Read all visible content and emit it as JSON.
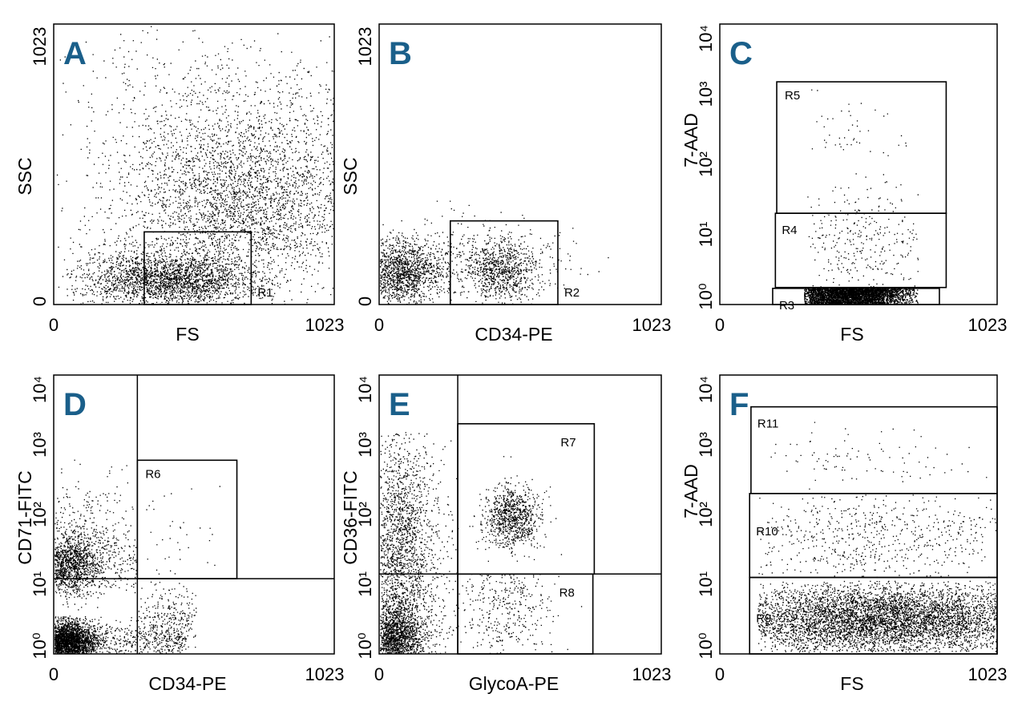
{
  "chart_data": [
    {
      "type": "scatter",
      "panel": "A",
      "xlabel": "FS",
      "ylabel": "SSC",
      "xscale": "linear",
      "yscale": "linear",
      "xlim": [
        0,
        1023
      ],
      "ylim": [
        0,
        1023
      ],
      "xticks": [
        "0",
        "1023"
      ],
      "yticks": [
        "0",
        "1023"
      ],
      "gates": [
        {
          "name": "R1",
          "x": [
            330,
            720
          ],
          "y": [
            0,
            265
          ]
        }
      ],
      "clusters": [
        {
          "cx": 480,
          "cy": 90,
          "sx": 130,
          "sy": 45,
          "n": 1500
        },
        {
          "cx": 700,
          "cy": 380,
          "sx": 220,
          "sy": 170,
          "n": 3000
        },
        {
          "cx": 600,
          "cy": 600,
          "sx": 300,
          "sy": 230,
          "n": 900
        },
        {
          "cx": 300,
          "cy": 100,
          "sx": 130,
          "sy": 60,
          "n": 900
        }
      ]
    },
    {
      "type": "scatter",
      "panel": "B",
      "xlabel": "CD34-PE",
      "ylabel": "SSC",
      "xscale": "linear",
      "yscale": "linear",
      "xlim": [
        0,
        1023
      ],
      "ylim": [
        0,
        1023
      ],
      "xticks": [
        "0",
        "1023"
      ],
      "yticks": [
        "0",
        "1023"
      ],
      "gates": [
        {
          "name": "R2",
          "x": [
            258,
            648
          ],
          "y": [
            0,
            305
          ]
        }
      ],
      "clusters": [
        {
          "cx": 80,
          "cy": 115,
          "sx": 70,
          "sy": 60,
          "n": 1400
        },
        {
          "cx": 440,
          "cy": 120,
          "sx": 65,
          "sy": 55,
          "n": 700
        },
        {
          "cx": 350,
          "cy": 160,
          "sx": 170,
          "sy": 70,
          "n": 500
        }
      ]
    },
    {
      "type": "scatter",
      "panel": "C",
      "xlabel": "FS",
      "ylabel": "7-AAD",
      "xscale": "linear",
      "yscale": "log",
      "xlim": [
        0,
        1023
      ],
      "ylim": [
        1,
        10000
      ],
      "xticks": [
        "0",
        "1023"
      ],
      "yticks": [
        "10⁰",
        "10¹",
        "10²",
        "10³",
        "10⁴"
      ],
      "gates": [
        {
          "name": "R5",
          "x": [
            210,
            835
          ],
          "y": [
            20,
            1500
          ]
        },
        {
          "name": "R4",
          "x": [
            205,
            835
          ],
          "y": [
            1.75,
            20
          ]
        },
        {
          "name": "R3",
          "x": [
            195,
            810
          ],
          "y": [
            1,
            1.7
          ]
        }
      ],
      "clusters": [
        {
          "cx": 480,
          "cy": 0.3,
          "sx": 110,
          "sy": 0.12,
          "n": 3800,
          "xr": [
            310,
            730
          ],
          "yr": [
            0.005,
            0.23
          ]
        },
        {
          "cx": 520,
          "cy": 0.85,
          "sx": 120,
          "sy": 0.4,
          "n": 300,
          "xr": [
            310,
            730
          ],
          "yr": [
            0.25,
            1.9
          ]
        },
        {
          "cx": 470,
          "cy": 2.35,
          "sx": 110,
          "sy": 0.25,
          "n": 45,
          "xr": [
            310,
            730
          ],
          "yr": [
            2.1,
            3.1
          ]
        }
      ]
    },
    {
      "type": "scatter",
      "panel": "D",
      "xlabel": "CD34-PE",
      "ylabel": "CD71-FITC",
      "xscale": "linear",
      "yscale": "log",
      "xlim": [
        0,
        1023
      ],
      "ylim": [
        1,
        10000
      ],
      "xticks": [
        "0",
        "1023"
      ],
      "yticks": [
        "10⁰",
        "10¹",
        "10²",
        "10³",
        "10⁴"
      ],
      "gates": [
        {
          "name": "R6",
          "x": [
            305,
            668
          ],
          "y": [
            12,
            600
          ]
        }
      ],
      "quadrant": {
        "x": 305,
        "y": 12
      },
      "clusters": [
        {
          "cx": 45,
          "cy": 0.17,
          "sx": 55,
          "sy": 0.14,
          "n": 2600,
          "xr": [
            0,
            480
          ],
          "yr": [
            0.0,
            0.55
          ]
        },
        {
          "cx": 55,
          "cy": 1.3,
          "sx": 55,
          "sy": 0.22,
          "n": 1200,
          "xr": [
            0,
            300
          ],
          "yr": [
            0.8,
            1.9
          ]
        },
        {
          "cx": 110,
          "cy": 1.6,
          "sx": 90,
          "sy": 0.5,
          "n": 350,
          "xr": [
            0,
            300
          ],
          "yr": [
            0.6,
            2.8
          ]
        },
        {
          "cx": 420,
          "cy": 1.7,
          "sx": 70,
          "sy": 0.4,
          "n": 35,
          "xr": [
            305,
            660
          ],
          "yr": [
            1.1,
            2.5
          ]
        },
        {
          "cx": 430,
          "cy": 0.5,
          "sx": 70,
          "sy": 0.25,
          "n": 280,
          "xr": [
            305,
            520
          ],
          "yr": [
            0.0,
            1.05
          ]
        }
      ]
    },
    {
      "type": "scatter",
      "panel": "E",
      "xlabel": "GlycoA-PE",
      "ylabel": "CD36-FITC",
      "xscale": "linear",
      "yscale": "log",
      "xlim": [
        0,
        1023
      ],
      "ylim": [
        1,
        10000
      ],
      "xticks": [
        "0",
        "1023"
      ],
      "yticks": [
        "10⁰",
        "10¹",
        "10²",
        "10³",
        "10⁴"
      ],
      "gates": [
        {
          "name": "R7",
          "x": [
            285,
            780
          ],
          "y": [
            14,
            2000
          ]
        },
        {
          "name": "R8",
          "x": [
            285,
            775
          ],
          "y": [
            1,
            14
          ]
        }
      ],
      "quadrant": {
        "x": 285,
        "y": 14
      },
      "clusters": [
        {
          "cx": 60,
          "cy": 0.25,
          "sx": 45,
          "sy": 0.2,
          "n": 1200,
          "xr": [
            0,
            260
          ],
          "yr": [
            0.0,
            0.9
          ]
        },
        {
          "cx": 80,
          "cy": 1.4,
          "sx": 60,
          "sy": 0.9,
          "n": 1900,
          "xr": [
            0,
            285
          ],
          "yr": [
            0.0,
            3.2
          ]
        },
        {
          "cx": 480,
          "cy": 1.95,
          "sx": 50,
          "sy": 0.22,
          "n": 900,
          "xr": [
            285,
            780
          ],
          "yr": [
            1.15,
            3.3
          ]
        },
        {
          "cx": 460,
          "cy": 0.8,
          "sx": 90,
          "sy": 0.5,
          "n": 350,
          "xr": [
            285,
            775
          ],
          "yr": [
            0.0,
            1.15
          ]
        }
      ]
    },
    {
      "type": "scatter",
      "panel": "F",
      "xlabel": "FS",
      "ylabel": "7-AAD",
      "xscale": "linear",
      "yscale": "log",
      "xlim": [
        0,
        1023
      ],
      "ylim": [
        1,
        10000
      ],
      "xticks": [
        "0",
        "1023"
      ],
      "yticks": [
        "10⁰",
        "10¹",
        "10²",
        "10³",
        "10⁴"
      ],
      "gates": [
        {
          "name": "R11",
          "x": [
            115,
            1023
          ],
          "y": [
            200,
            3500
          ]
        },
        {
          "name": "R10",
          "x": [
            110,
            1023
          ],
          "y": [
            12.5,
            200
          ]
        },
        {
          "name": "R9",
          "x": [
            110,
            1023
          ],
          "y": [
            1,
            12.5
          ]
        }
      ],
      "clusters": [
        {
          "cx": 600,
          "cy": 0.5,
          "sx": 280,
          "sy": 0.25,
          "n": 5200,
          "xr": [
            140,
            1023
          ],
          "yr": [
            0.03,
            1.05
          ]
        },
        {
          "cx": 580,
          "cy": 1.7,
          "sx": 280,
          "sy": 0.35,
          "n": 600,
          "xr": [
            140,
            1023
          ],
          "yr": [
            1.1,
            2.3
          ]
        },
        {
          "cx": 580,
          "cy": 2.8,
          "sx": 280,
          "sy": 0.2,
          "n": 90,
          "xr": [
            140,
            1023
          ],
          "yr": [
            2.3,
            3.4
          ]
        }
      ]
    }
  ]
}
